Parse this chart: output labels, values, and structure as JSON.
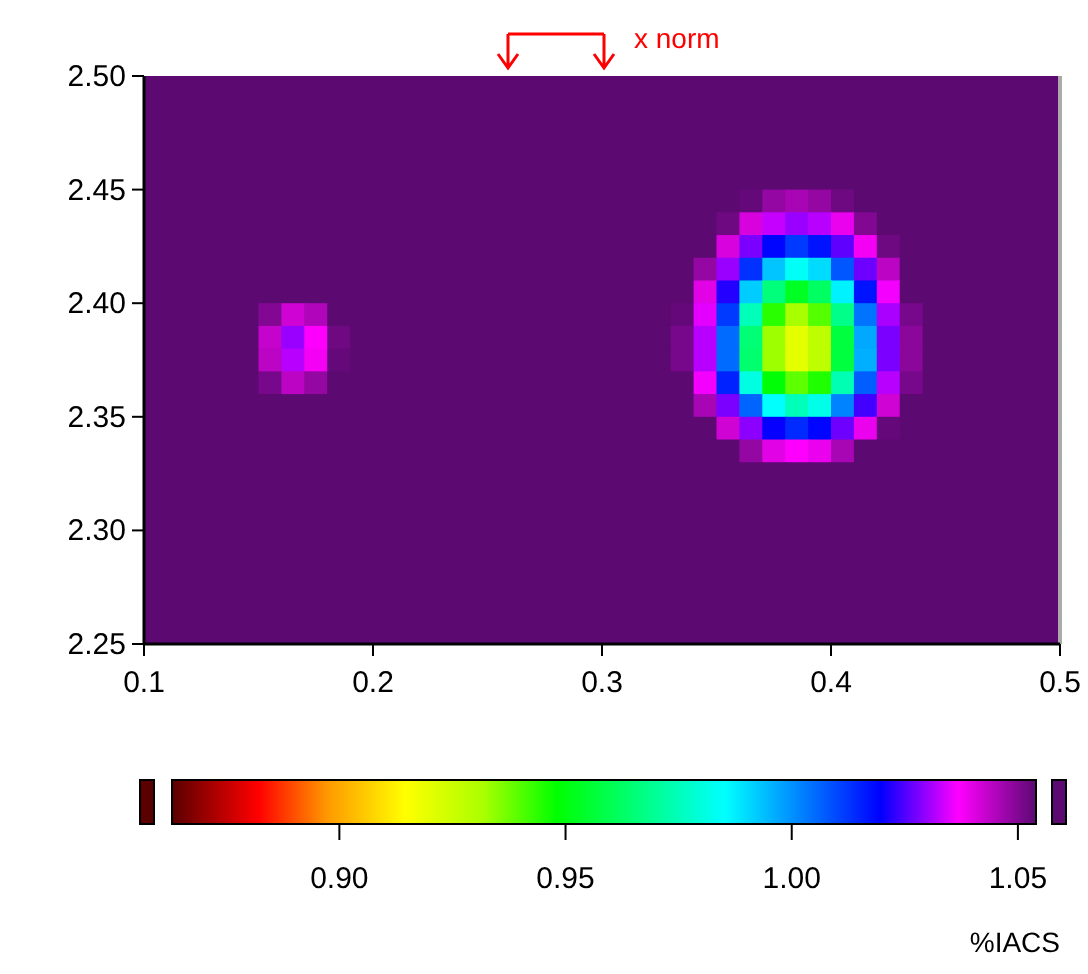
{
  "chart_data": {
    "type": "heatmap",
    "x": [
      0.105,
      0.115,
      0.125,
      0.135,
      0.145,
      0.155,
      0.165,
      0.175,
      0.185,
      0.195,
      0.205,
      0.215,
      0.225,
      0.235,
      0.245,
      0.255,
      0.265,
      0.275,
      0.285,
      0.295,
      0.305,
      0.315,
      0.325,
      0.335,
      0.345,
      0.355,
      0.365,
      0.375,
      0.385,
      0.395,
      0.405,
      0.415,
      0.425,
      0.435,
      0.445,
      0.455,
      0.465,
      0.475,
      0.485,
      0.495
    ],
    "y": [
      2.495,
      2.485,
      2.475,
      2.465,
      2.455,
      2.445,
      2.435,
      2.425,
      2.415,
      2.405,
      2.395,
      2.385,
      2.375,
      2.365,
      2.355,
      2.345,
      2.335,
      2.325,
      2.315,
      2.305,
      2.295,
      2.285,
      2.275,
      2.265,
      2.255
    ],
    "xlim": [
      0.1,
      0.5
    ],
    "xticks": [
      0.1,
      0.2,
      0.3,
      0.4,
      0.5
    ],
    "ylim": [
      2.25,
      2.5
    ],
    "yticks": [
      {
        "value": 2.25,
        "label": "2.25"
      },
      {
        "value": 2.3,
        "label": "2.30"
      },
      {
        "value": 2.35,
        "label": "2.35"
      },
      {
        "value": 2.4,
        "label": "2.40"
      },
      {
        "value": 2.45,
        "label": "2.45"
      },
      {
        "value": 2.5,
        "label": "2.50"
      }
    ],
    "clim": [
      0.863,
      1.054
    ],
    "cticks": [
      {
        "value": 0.9,
        "label": "0.90"
      },
      {
        "value": 0.95,
        "label": "0.95"
      },
      {
        "value": 1.0,
        "label": "1.00"
      },
      {
        "value": 1.05,
        "label": "1.05"
      }
    ],
    "clabel": "%IACS",
    "annotations": [
      "x norm"
    ],
    "cells": [
      [
        1.054,
        1.054,
        1.054,
        1.054,
        1.054,
        1.054,
        1.054,
        1.054,
        1.054,
        1.054,
        1.054,
        1.054,
        1.054,
        1.054,
        1.054,
        1.054,
        1.054,
        1.054,
        1.054,
        1.054,
        1.054,
        1.054,
        1.054,
        1.054,
        1.054,
        1.054,
        1.054,
        1.054,
        1.054,
        1.054,
        1.054,
        1.054,
        1.054,
        1.054,
        1.054,
        1.054,
        1.054,
        1.054,
        1.054,
        1.054
      ],
      [
        1.054,
        1.054,
        1.054,
        1.054,
        1.054,
        1.054,
        1.054,
        1.054,
        1.054,
        1.054,
        1.054,
        1.054,
        1.054,
        1.054,
        1.054,
        1.054,
        1.054,
        1.054,
        1.054,
        1.054,
        1.054,
        1.054,
        1.054,
        1.054,
        1.054,
        1.054,
        1.054,
        1.054,
        1.054,
        1.054,
        1.054,
        1.054,
        1.054,
        1.054,
        1.054,
        1.054,
        1.054,
        1.054,
        1.054,
        1.054
      ],
      [
        1.054,
        1.054,
        1.054,
        1.054,
        1.054,
        1.054,
        1.054,
        1.054,
        1.054,
        1.054,
        1.054,
        1.054,
        1.054,
        1.054,
        1.054,
        1.054,
        1.054,
        1.054,
        1.054,
        1.054,
        1.054,
        1.054,
        1.054,
        1.054,
        1.054,
        1.054,
        1.054,
        1.054,
        1.054,
        1.054,
        1.054,
        1.054,
        1.054,
        1.054,
        1.054,
        1.054,
        1.054,
        1.054,
        1.054,
        1.054
      ],
      [
        1.054,
        1.054,
        1.054,
        1.054,
        1.054,
        1.054,
        1.054,
        1.054,
        1.054,
        1.054,
        1.054,
        1.054,
        1.054,
        1.054,
        1.054,
        1.054,
        1.054,
        1.054,
        1.054,
        1.054,
        1.054,
        1.054,
        1.054,
        1.054,
        1.054,
        1.054,
        1.054,
        1.054,
        1.054,
        1.054,
        1.054,
        1.054,
        1.054,
        1.054,
        1.054,
        1.054,
        1.054,
        1.054,
        1.054,
        1.054
      ],
      [
        1.054,
        1.054,
        1.054,
        1.054,
        1.054,
        1.054,
        1.054,
        1.054,
        1.054,
        1.054,
        1.054,
        1.054,
        1.054,
        1.054,
        1.054,
        1.054,
        1.054,
        1.054,
        1.054,
        1.054,
        1.054,
        1.054,
        1.054,
        1.054,
        1.054,
        1.054,
        1.054,
        1.054,
        1.054,
        1.054,
        1.054,
        1.054,
        1.054,
        1.054,
        1.054,
        1.054,
        1.054,
        1.054,
        1.054,
        1.054
      ],
      [
        1.054,
        1.054,
        1.054,
        1.054,
        1.054,
        1.054,
        1.054,
        1.054,
        1.054,
        1.054,
        1.054,
        1.054,
        1.054,
        1.054,
        1.054,
        1.054,
        1.054,
        1.054,
        1.054,
        1.054,
        1.054,
        1.054,
        1.054,
        1.054,
        1.054,
        1.054,
        1.053,
        1.048,
        1.046,
        1.048,
        1.052,
        1.054,
        1.054,
        1.054,
        1.054,
        1.054,
        1.054,
        1.054,
        1.054,
        1.054
      ],
      [
        1.054,
        1.054,
        1.054,
        1.054,
        1.054,
        1.054,
        1.054,
        1.054,
        1.054,
        1.054,
        1.054,
        1.054,
        1.054,
        1.054,
        1.054,
        1.054,
        1.054,
        1.054,
        1.054,
        1.054,
        1.054,
        1.054,
        1.054,
        1.054,
        1.054,
        1.052,
        1.041,
        1.033,
        1.03,
        1.032,
        1.039,
        1.05,
        1.054,
        1.054,
        1.054,
        1.054,
        1.054,
        1.054,
        1.054,
        1.054
      ],
      [
        1.054,
        1.054,
        1.054,
        1.054,
        1.054,
        1.054,
        1.054,
        1.054,
        1.054,
        1.054,
        1.054,
        1.054,
        1.054,
        1.054,
        1.054,
        1.054,
        1.054,
        1.054,
        1.054,
        1.054,
        1.054,
        1.054,
        1.054,
        1.054,
        1.054,
        1.041,
        1.028,
        1.019,
        1.012,
        1.017,
        1.026,
        1.038,
        1.052,
        1.054,
        1.054,
        1.054,
        1.054,
        1.054,
        1.054,
        1.054
      ],
      [
        1.054,
        1.054,
        1.054,
        1.054,
        1.054,
        1.054,
        1.054,
        1.054,
        1.054,
        1.054,
        1.054,
        1.054,
        1.054,
        1.054,
        1.054,
        1.054,
        1.054,
        1.054,
        1.054,
        1.054,
        1.054,
        1.054,
        1.054,
        1.054,
        1.048,
        1.03,
        1.013,
        0.993,
        0.984,
        0.99,
        1.008,
        1.027,
        1.044,
        1.054,
        1.054,
        1.054,
        1.054,
        1.054,
        1.054,
        1.054
      ],
      [
        1.054,
        1.054,
        1.054,
        1.054,
        1.054,
        1.054,
        1.054,
        1.054,
        1.054,
        1.054,
        1.054,
        1.054,
        1.054,
        1.054,
        1.054,
        1.054,
        1.054,
        1.054,
        1.054,
        1.054,
        1.054,
        1.054,
        1.054,
        1.054,
        1.04,
        1.022,
        0.992,
        0.966,
        0.953,
        0.962,
        0.987,
        1.017,
        1.036,
        1.054,
        1.054,
        1.054,
        1.054,
        1.054,
        1.054,
        1.054
      ],
      [
        1.054,
        1.054,
        1.054,
        1.054,
        1.054,
        1.05,
        1.042,
        1.045,
        1.054,
        1.054,
        1.054,
        1.054,
        1.054,
        1.054,
        1.054,
        1.054,
        1.054,
        1.054,
        1.054,
        1.054,
        1.054,
        1.054,
        1.054,
        1.053,
        1.035,
        1.012,
        0.975,
        0.944,
        0.932,
        0.94,
        0.968,
        1.004,
        1.031,
        1.051,
        1.054,
        1.054,
        1.054,
        1.054,
        1.054,
        1.054
      ],
      [
        1.054,
        1.054,
        1.054,
        1.054,
        1.054,
        1.043,
        1.03,
        1.037,
        1.052,
        1.054,
        1.054,
        1.054,
        1.054,
        1.054,
        1.054,
        1.054,
        1.054,
        1.054,
        1.054,
        1.054,
        1.054,
        1.054,
        1.054,
        1.051,
        1.032,
        1.005,
        0.965,
        0.933,
        0.92,
        0.928,
        0.957,
        0.997,
        1.028,
        1.049,
        1.054,
        1.054,
        1.054,
        1.054,
        1.054,
        1.054
      ],
      [
        1.054,
        1.054,
        1.054,
        1.054,
        1.054,
        1.044,
        1.032,
        1.038,
        1.053,
        1.054,
        1.054,
        1.054,
        1.054,
        1.054,
        1.054,
        1.054,
        1.054,
        1.054,
        1.054,
        1.054,
        1.054,
        1.054,
        1.054,
        1.051,
        1.032,
        1.005,
        0.964,
        0.933,
        0.92,
        0.928,
        0.957,
        0.996,
        1.028,
        1.049,
        1.054,
        1.054,
        1.054,
        1.054,
        1.054,
        1.054
      ],
      [
        1.054,
        1.054,
        1.054,
        1.054,
        1.054,
        1.051,
        1.044,
        1.048,
        1.054,
        1.054,
        1.054,
        1.054,
        1.054,
        1.054,
        1.054,
        1.054,
        1.054,
        1.054,
        1.054,
        1.054,
        1.054,
        1.054,
        1.054,
        1.054,
        1.036,
        1.015,
        0.981,
        0.949,
        0.939,
        0.945,
        0.974,
        1.007,
        1.032,
        1.051,
        1.054,
        1.054,
        1.054,
        1.054,
        1.054,
        1.054
      ],
      [
        1.054,
        1.054,
        1.054,
        1.054,
        1.054,
        1.054,
        1.054,
        1.054,
        1.054,
        1.054,
        1.054,
        1.054,
        1.054,
        1.054,
        1.054,
        1.054,
        1.054,
        1.054,
        1.054,
        1.054,
        1.054,
        1.054,
        1.054,
        1.054,
        1.046,
        1.028,
        1.006,
        0.985,
        0.975,
        0.982,
        1.002,
        1.024,
        1.042,
        1.054,
        1.054,
        1.054,
        1.054,
        1.054,
        1.054,
        1.054
      ],
      [
        1.054,
        1.054,
        1.054,
        1.054,
        1.054,
        1.054,
        1.054,
        1.054,
        1.054,
        1.054,
        1.054,
        1.054,
        1.054,
        1.054,
        1.054,
        1.054,
        1.054,
        1.054,
        1.054,
        1.054,
        1.054,
        1.054,
        1.054,
        1.054,
        1.054,
        1.042,
        1.029,
        1.02,
        1.014,
        1.019,
        1.027,
        1.039,
        1.053,
        1.054,
        1.054,
        1.054,
        1.054,
        1.054,
        1.054,
        1.054
      ],
      [
        1.054,
        1.054,
        1.054,
        1.054,
        1.054,
        1.054,
        1.054,
        1.054,
        1.054,
        1.054,
        1.054,
        1.054,
        1.054,
        1.054,
        1.054,
        1.054,
        1.054,
        1.054,
        1.054,
        1.054,
        1.054,
        1.054,
        1.054,
        1.054,
        1.054,
        1.054,
        1.048,
        1.04,
        1.037,
        1.039,
        1.046,
        1.054,
        1.054,
        1.054,
        1.054,
        1.054,
        1.054,
        1.054,
        1.054,
        1.054
      ],
      [
        1.054,
        1.054,
        1.054,
        1.054,
        1.054,
        1.054,
        1.054,
        1.054,
        1.054,
        1.054,
        1.054,
        1.054,
        1.054,
        1.054,
        1.054,
        1.054,
        1.054,
        1.054,
        1.054,
        1.054,
        1.054,
        1.054,
        1.054,
        1.054,
        1.054,
        1.054,
        1.054,
        1.054,
        1.054,
        1.054,
        1.054,
        1.054,
        1.054,
        1.054,
        1.054,
        1.054,
        1.054,
        1.054,
        1.054,
        1.054
      ],
      [
        1.054,
        1.054,
        1.054,
        1.054,
        1.054,
        1.054,
        1.054,
        1.054,
        1.054,
        1.054,
        1.054,
        1.054,
        1.054,
        1.054,
        1.054,
        1.054,
        1.054,
        1.054,
        1.054,
        1.054,
        1.054,
        1.054,
        1.054,
        1.054,
        1.054,
        1.054,
        1.054,
        1.054,
        1.054,
        1.054,
        1.054,
        1.054,
        1.054,
        1.054,
        1.054,
        1.054,
        1.054,
        1.054,
        1.054,
        1.054
      ],
      [
        1.054,
        1.054,
        1.054,
        1.054,
        1.054,
        1.054,
        1.054,
        1.054,
        1.054,
        1.054,
        1.054,
        1.054,
        1.054,
        1.054,
        1.054,
        1.054,
        1.054,
        1.054,
        1.054,
        1.054,
        1.054,
        1.054,
        1.054,
        1.054,
        1.054,
        1.054,
        1.054,
        1.054,
        1.054,
        1.054,
        1.054,
        1.054,
        1.054,
        1.054,
        1.054,
        1.054,
        1.054,
        1.054,
        1.054,
        1.054
      ],
      [
        1.054,
        1.054,
        1.054,
        1.054,
        1.054,
        1.054,
        1.054,
        1.054,
        1.054,
        1.054,
        1.054,
        1.054,
        1.054,
        1.054,
        1.054,
        1.054,
        1.054,
        1.054,
        1.054,
        1.054,
        1.054,
        1.054,
        1.054,
        1.054,
        1.054,
        1.054,
        1.054,
        1.054,
        1.054,
        1.054,
        1.054,
        1.054,
        1.054,
        1.054,
        1.054,
        1.054,
        1.054,
        1.054,
        1.054,
        1.054
      ],
      [
        1.054,
        1.054,
        1.054,
        1.054,
        1.054,
        1.054,
        1.054,
        1.054,
        1.054,
        1.054,
        1.054,
        1.054,
        1.054,
        1.054,
        1.054,
        1.054,
        1.054,
        1.054,
        1.054,
        1.054,
        1.054,
        1.054,
        1.054,
        1.054,
        1.054,
        1.054,
        1.054,
        1.054,
        1.054,
        1.054,
        1.054,
        1.054,
        1.054,
        1.054,
        1.054,
        1.054,
        1.054,
        1.054,
        1.054,
        1.054
      ],
      [
        1.054,
        1.054,
        1.054,
        1.054,
        1.054,
        1.054,
        1.054,
        1.054,
        1.054,
        1.054,
        1.054,
        1.054,
        1.054,
        1.054,
        1.054,
        1.054,
        1.054,
        1.054,
        1.054,
        1.054,
        1.054,
        1.054,
        1.054,
        1.054,
        1.054,
        1.054,
        1.054,
        1.054,
        1.054,
        1.054,
        1.054,
        1.054,
        1.054,
        1.054,
        1.054,
        1.054,
        1.054,
        1.054,
        1.054,
        1.054
      ],
      [
        1.054,
        1.054,
        1.054,
        1.054,
        1.054,
        1.054,
        1.054,
        1.054,
        1.054,
        1.054,
        1.054,
        1.054,
        1.054,
        1.054,
        1.054,
        1.054,
        1.054,
        1.054,
        1.054,
        1.054,
        1.054,
        1.054,
        1.054,
        1.054,
        1.054,
        1.054,
        1.054,
        1.054,
        1.054,
        1.054,
        1.054,
        1.054,
        1.054,
        1.054,
        1.054,
        1.054,
        1.054,
        1.054,
        1.054,
        1.054
      ],
      [
        1.054,
        1.054,
        1.054,
        1.054,
        1.054,
        1.054,
        1.054,
        1.054,
        1.054,
        1.054,
        1.054,
        1.054,
        1.054,
        1.054,
        1.054,
        1.054,
        1.054,
        1.054,
        1.054,
        1.054,
        1.054,
        1.054,
        1.054,
        1.054,
        1.054,
        1.054,
        1.054,
        1.054,
        1.054,
        1.054,
        1.054,
        1.054,
        1.054,
        1.054,
        1.054,
        1.054,
        1.054,
        1.054,
        1.054,
        1.054
      ]
    ]
  }
}
